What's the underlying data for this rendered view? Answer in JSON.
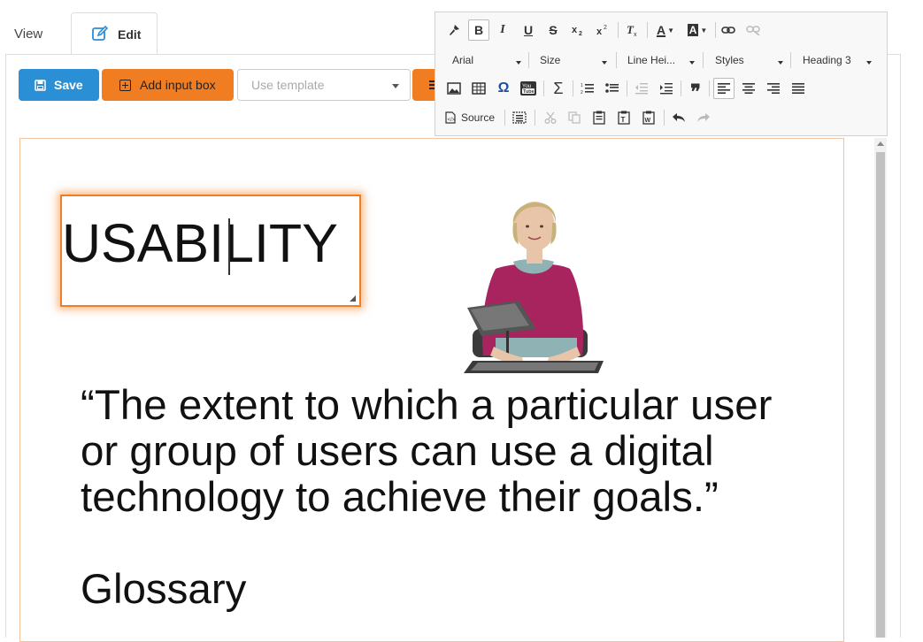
{
  "tabs": {
    "view": "View",
    "edit": "Edit"
  },
  "actions": {
    "save": "Save",
    "add_input_box": "Add input box",
    "template_placeholder": "Use template"
  },
  "toolbar": {
    "font": "Arial",
    "size": "Size",
    "line_height": "Line Hei...",
    "styles": "Styles",
    "format": "Heading 3",
    "source": "Source",
    "bold": "B",
    "italic": "I",
    "underline": "U",
    "strike": "S",
    "sigma": "Σ",
    "omega": "Ω",
    "quote": "❞",
    "font_color": "A",
    "bg_color": "A"
  },
  "content": {
    "input_box_text": "USABILITY",
    "quote": "“The extent to which a particular user or group of users can use a digital technology to achieve their goals.”",
    "glossary": "Glossary"
  },
  "colors": {
    "primary": "#2b8fd6",
    "accent": "#f07d22"
  }
}
